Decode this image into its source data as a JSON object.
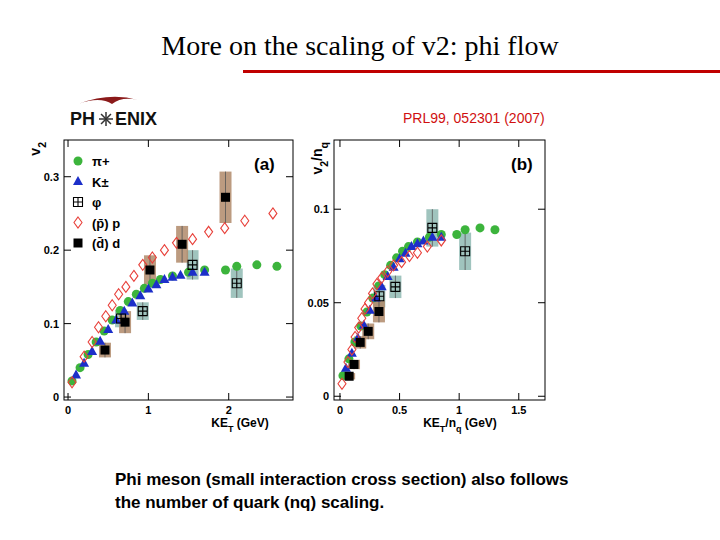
{
  "title": "More on the scaling of v2: phi flow",
  "logo": [
    "PH",
    "ENIX"
  ],
  "reference": "PRL99, 052301 (2007)",
  "caption": [
    "Phi meson (small interaction cross section) also follows",
    "the number of quark (nq) scaling."
  ],
  "chart_data": [
    {
      "type": "scatter",
      "annotations": [
        "(a)"
      ],
      "x_label": "KET (GeV)",
      "y_label": "v2",
      "legend": "upper left",
      "grid": false,
      "xlim": [
        -0.05,
        2.8
      ],
      "ylim": [
        -0.004,
        0.35
      ],
      "xticks": [
        0,
        1,
        2
      ],
      "yticks": [
        0,
        0.1,
        0.2,
        0.3
      ],
      "series": [
        {
          "name": "π+",
          "color": "#3cb43c",
          "marker": "circle",
          "x": [
            0.05,
            0.15,
            0.25,
            0.35,
            0.45,
            0.55,
            0.65,
            0.75,
            0.85,
            0.95,
            1.05,
            1.15,
            1.3,
            1.5,
            1.7,
            1.96,
            2.1,
            2.35,
            2.6
          ],
          "values": [
            0.022,
            0.04,
            0.058,
            0.075,
            0.09,
            0.105,
            0.118,
            0.13,
            0.14,
            0.148,
            0.155,
            0.16,
            0.165,
            0.17,
            0.173,
            0.173,
            0.178,
            0.18,
            0.178
          ]
        },
        {
          "name": "K±",
          "color": "#1c2fc9",
          "marker": "triangle",
          "x": [
            0.1,
            0.2,
            0.3,
            0.4,
            0.5,
            0.6,
            0.7,
            0.8,
            0.9,
            1.0,
            1.1,
            1.2,
            1.3,
            1.4,
            1.55,
            1.7
          ],
          "values": [
            0.03,
            0.046,
            0.062,
            0.076,
            0.092,
            0.105,
            0.117,
            0.128,
            0.138,
            0.147,
            0.153,
            0.16,
            0.163,
            0.166,
            0.17,
            0.17
          ]
        },
        {
          "name": "φ",
          "color": "#000000",
          "marker": "cross-square",
          "x": [
            0.66,
            0.93,
            1.55,
            2.1
          ],
          "values": [
            0.107,
            0.117,
            0.18,
            0.155
          ],
          "errors": [
            0.012,
            0.012,
            0.02,
            0.02
          ]
        },
        {
          "name": "(p̄) p",
          "color": "#e8403a",
          "marker": "open-diamond",
          "x": [
            0.05,
            0.2,
            0.3,
            0.38,
            0.47,
            0.55,
            0.63,
            0.72,
            0.82,
            0.93,
            1.05,
            1.2,
            1.35,
            1.55,
            1.75,
            1.95,
            2.2,
            2.55
          ],
          "values": [
            0.02,
            0.055,
            0.075,
            0.095,
            0.11,
            0.125,
            0.14,
            0.15,
            0.165,
            0.18,
            0.19,
            0.2,
            0.21,
            0.215,
            0.225,
            0.23,
            0.24,
            0.25
          ]
        },
        {
          "name": "(d̄) d",
          "color": "#000000",
          "marker": "square",
          "x": [
            0.46,
            0.71,
            1.02,
            1.42,
            1.96
          ],
          "values": [
            0.064,
            0.102,
            0.173,
            0.208,
            0.272
          ],
          "errors": [
            0.01,
            0.015,
            0.02,
            0.025,
            0.035
          ]
        }
      ]
    },
    {
      "type": "scatter",
      "annotations": [
        "(b)"
      ],
      "x_label": "KET/nq (GeV)",
      "y_label": "v2/nq",
      "grid": false,
      "xlim": [
        -0.05,
        1.72
      ],
      "ylim": [
        -0.002,
        0.137
      ],
      "xticks": [
        0,
        0.5,
        1,
        1.5
      ],
      "yticks": [
        0,
        0.05,
        0.1
      ],
      "series": [
        {
          "color": "#3cb43c",
          "marker": "circle",
          "x": [
            0.025,
            0.075,
            0.125,
            0.175,
            0.225,
            0.275,
            0.325,
            0.375,
            0.425,
            0.475,
            0.525,
            0.575,
            0.65,
            0.75,
            0.85,
            0.98,
            1.05,
            1.175,
            1.3
          ],
          "values": [
            0.011,
            0.02,
            0.029,
            0.0375,
            0.045,
            0.0525,
            0.059,
            0.065,
            0.07,
            0.074,
            0.0775,
            0.08,
            0.0825,
            0.085,
            0.0865,
            0.0865,
            0.089,
            0.09,
            0.089
          ]
        },
        {
          "color": "#1c2fc9",
          "marker": "triangle",
          "x": [
            0.05,
            0.1,
            0.15,
            0.2,
            0.25,
            0.3,
            0.35,
            0.4,
            0.45,
            0.5,
            0.55,
            0.6,
            0.65,
            0.7,
            0.775,
            0.85
          ],
          "values": [
            0.015,
            0.023,
            0.031,
            0.038,
            0.046,
            0.0525,
            0.0585,
            0.064,
            0.069,
            0.0735,
            0.0765,
            0.08,
            0.0815,
            0.083,
            0.085,
            0.085
          ]
        },
        {
          "color": "#000000",
          "marker": "cross-square",
          "x": [
            0.33,
            0.465,
            0.775,
            1.05
          ],
          "values": [
            0.0535,
            0.0585,
            0.09,
            0.0775
          ],
          "errors": [
            0.006,
            0.006,
            0.01,
            0.01
          ]
        },
        {
          "color": "#e8403a",
          "marker": "open-diamond",
          "x": [
            0.017,
            0.067,
            0.1,
            0.127,
            0.157,
            0.183,
            0.21,
            0.24,
            0.273,
            0.31,
            0.35,
            0.4,
            0.45,
            0.517,
            0.583,
            0.65,
            0.733,
            0.85
          ],
          "values": [
            0.0067,
            0.0183,
            0.025,
            0.0317,
            0.0367,
            0.0417,
            0.0467,
            0.05,
            0.055,
            0.06,
            0.0633,
            0.0667,
            0.07,
            0.0717,
            0.075,
            0.0767,
            0.08,
            0.0833
          ]
        },
        {
          "color": "#000000",
          "marker": "square",
          "x": [
            0.077,
            0.118,
            0.17,
            0.237,
            0.327
          ],
          "values": [
            0.0107,
            0.017,
            0.0288,
            0.0347,
            0.0453
          ],
          "errors": [
            0.0017,
            0.0025,
            0.0033,
            0.0042,
            0.0058
          ]
        }
      ]
    }
  ]
}
